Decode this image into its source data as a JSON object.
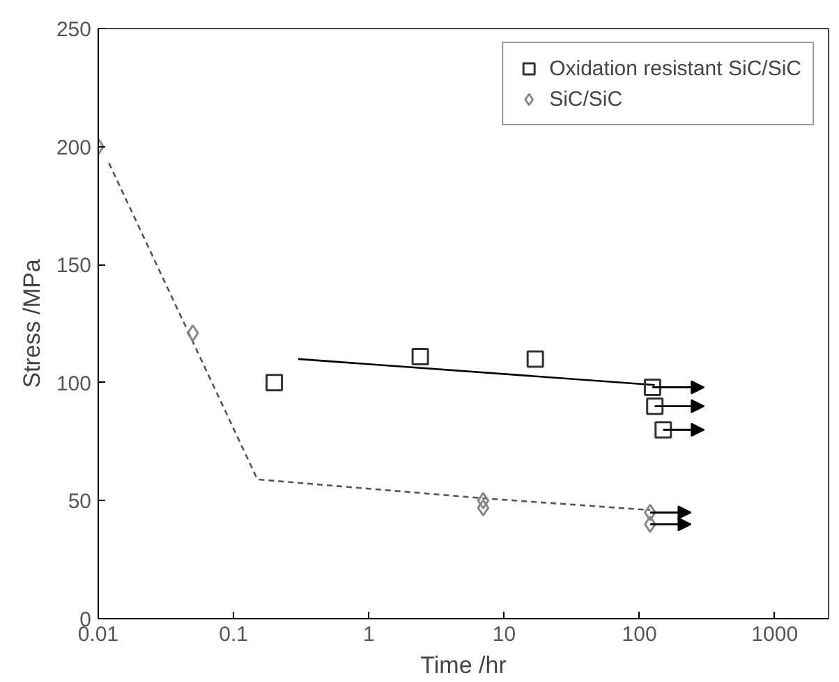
{
  "chart_data": {
    "type": "scatter",
    "xlabel": "Time /hr",
    "ylabel": "Stress /MPa",
    "log": "x",
    "xlim": [
      0.01,
      2500
    ],
    "xticks": [
      0.01,
      0.1,
      1,
      10,
      100,
      1000
    ],
    "ylim": [
      0,
      250
    ],
    "yticks": [
      0,
      50,
      100,
      150,
      200,
      250
    ],
    "grid": false,
    "legend": "top right",
    "series": [
      {
        "name": "Oxidation resistant SiC/SiC",
        "marker": "square",
        "color": "#333333",
        "x": [
          0.2,
          2.4,
          17,
          125,
          130,
          150
        ],
        "values": [
          100,
          111,
          110,
          98,
          90,
          80
        ],
        "xerrors": [
          null,
          null,
          null,
          [
            125,
            300
          ],
          [
            130,
            300
          ],
          [
            150,
            300
          ]
        ]
      },
      {
        "name": "SiC/SiC",
        "marker": "diamond",
        "color": "#888888",
        "x": [
          0.01,
          0.05,
          7,
          7,
          120,
          120
        ],
        "values": [
          200,
          121,
          47,
          50,
          45,
          40
        ],
        "xerrors": [
          null,
          null,
          null,
          null,
          [
            120,
            240
          ],
          [
            120,
            240
          ]
        ]
      },
      {
        "type": "line",
        "color": "#000000",
        "line_style": "solid",
        "x": [
          0.3,
          130
        ],
        "values": [
          110,
          99
        ]
      },
      {
        "type": "line",
        "color": "#555555",
        "line_style": "dashed",
        "x": [
          0.012,
          0.15,
          7,
          120
        ],
        "values": [
          193,
          59,
          51,
          46
        ]
      }
    ]
  }
}
